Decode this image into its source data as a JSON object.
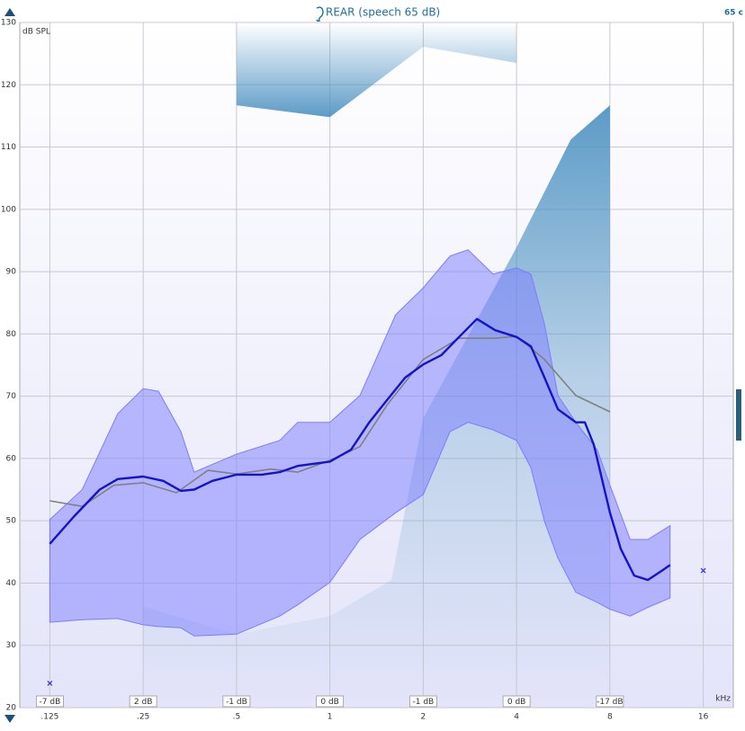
{
  "chart_data": {
    "type": "line",
    "title": "REAR (speech 65 dB)",
    "corner_label": "65 c",
    "xlabel": "kHz",
    "ylabel": "dB SPL",
    "xscale": "log",
    "xlim": [
      0.1,
      20
    ],
    "ylim": [
      20,
      130
    ],
    "xticks": [
      {
        "value": 0.125,
        "label": ".125"
      },
      {
        "value": 0.25,
        "label": ".25"
      },
      {
        "value": 0.5,
        "label": ".5"
      },
      1,
      2,
      4,
      8,
      16
    ],
    "yticks": [
      20,
      30,
      40,
      50,
      60,
      70,
      80,
      90,
      100,
      110,
      120,
      130
    ],
    "grid": true,
    "annotations": [
      "-7 dB",
      "2 dB",
      "-1 dB",
      "0 dB",
      "-1 dB",
      "0 dB",
      "-17 dB"
    ],
    "series": [
      {
        "kind": "ucl",
        "color": "#4a90c0",
        "x": [
          0.5,
          1,
          2,
          4
        ],
        "values": [
          116.7,
          114.8,
          126.1,
          123.5
        ]
      },
      {
        "kind": "threshold",
        "color": "#4a90c0",
        "x": [
          0.25,
          0.5,
          1,
          1.58,
          2,
          4,
          5.98,
          8
        ],
        "values": [
          36.2,
          31.8,
          34.7,
          40.5,
          66.5,
          93.9,
          111.2,
          116.7
        ]
      },
      {
        "kind": "band",
        "color": "#7c7cff",
        "x": [
          0.125,
          0.159,
          0.207,
          0.25,
          0.28,
          0.331,
          0.365,
          0.5,
          0.689,
          0.787,
          1,
          1.25,
          1.63,
          2,
          2.44,
          2.79,
          3.36,
          4,
          4.45,
          4.92,
          5.44,
          6.21,
          7.28,
          8,
          9.3,
          10.6,
          12.5
        ],
        "values": [
          50.2,
          55,
          67.2,
          71.2,
          70.8,
          64.3,
          57.8,
          60.7,
          62.9,
          65.8,
          65.8,
          70.1,
          83.1,
          87.4,
          92.5,
          93.5,
          89.6,
          90.6,
          89.6,
          81.6,
          70.1,
          65.8,
          61.4,
          55.7,
          47,
          47,
          49.2
        ],
        "lower": [
          33.7,
          34.1,
          34.3,
          33.3,
          33.0,
          32.8,
          31.5,
          31.8,
          34.7,
          36.5,
          40.1,
          47,
          51.3,
          54.2,
          64.3,
          65.8,
          64.6,
          62.9,
          58.5,
          49.9,
          44,
          38.5,
          36.9,
          35.8,
          34.7,
          36.1,
          37.6
        ]
      },
      {
        "kind": "line",
        "color": "#808080",
        "x": [
          0.125,
          0.159,
          0.201,
          0.25,
          0.32,
          0.404,
          0.5,
          0.644,
          0.787,
          1,
          1.25,
          1.53,
          2,
          2.61,
          3.41,
          4,
          4.92,
          6.21,
          8
        ],
        "values": [
          53.2,
          52.3,
          55.7,
          56.1,
          54.5,
          58.1,
          57.5,
          58.3,
          57.8,
          59.7,
          61.9,
          68.6,
          75.9,
          79.3,
          79.3,
          79.6,
          75.9,
          70.1,
          67.5
        ]
      },
      {
        "kind": "line",
        "color": "#1414c8",
        "x": [
          0.125,
          0.149,
          0.181,
          0.207,
          0.25,
          0.29,
          0.331,
          0.365,
          0.418,
          0.5,
          0.603,
          0.689,
          0.787,
          1,
          1.17,
          1.34,
          1.53,
          1.75,
          2,
          2.29,
          2.61,
          2.98,
          3.41,
          4,
          4.45,
          4.92,
          5.44,
          6.21,
          6.64,
          7.1,
          8,
          8.67,
          9.58,
          10.6,
          11.7,
          12.5
        ],
        "values": [
          46.3,
          50.6,
          55,
          56.7,
          57.1,
          56.4,
          54.8,
          55,
          56.4,
          57.4,
          57.4,
          57.8,
          58.8,
          59.5,
          61.4,
          65.8,
          69.4,
          73,
          75.1,
          76.6,
          79.5,
          82.4,
          80.6,
          79.5,
          78,
          73,
          67.9,
          65.8,
          65.8,
          62.2,
          51.3,
          45.5,
          41.2,
          40.5,
          41.9,
          42.9
        ]
      },
      {
        "kind": "marker",
        "color": "#3030d0",
        "x": [
          0.125,
          16
        ],
        "values": [
          23.9,
          42
        ]
      }
    ]
  }
}
